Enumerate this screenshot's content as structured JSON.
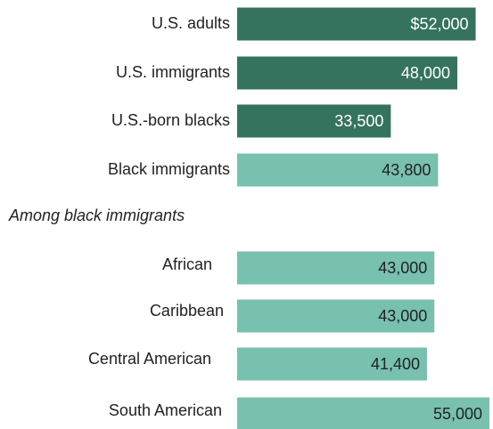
{
  "chart_data": {
    "type": "bar",
    "annotation": "Among black immigrants",
    "categories": [
      "U.S. adults",
      "U.S. immigrants",
      "U.S.-born blacks",
      "Black immigrants",
      "African",
      "Caribbean",
      "Central American",
      "South American"
    ],
    "values": [
      52000,
      48000,
      33500,
      43800,
      43000,
      43000,
      41400,
      55000
    ],
    "value_labels": [
      "$52,000",
      "48,000",
      "33,500",
      "43,800",
      "43,000",
      "43,000",
      "41,400",
      "55,000"
    ],
    "colors": [
      "#35735f",
      "#35735f",
      "#35735f",
      "#78c1ae",
      "#78c1ae",
      "#78c1ae",
      "#78c1ae",
      "#78c1ae"
    ],
    "label_colors": [
      "#ffffff",
      "#ffffff",
      "#ffffff",
      "#222222",
      "#222222",
      "#222222",
      "#222222",
      "#222222"
    ]
  }
}
